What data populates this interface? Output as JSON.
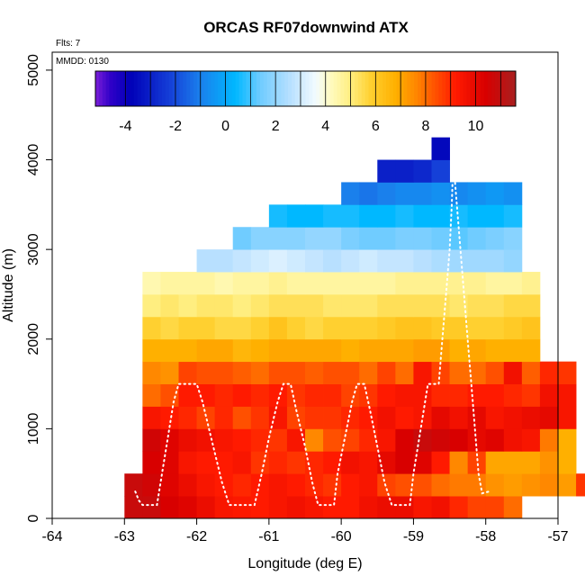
{
  "chart_data": {
    "type": "heatmap",
    "title": "ORCAS RF07downwind ATX",
    "xlabel": "Longitude (deg E)",
    "ylabel": "Altitude (m)",
    "note_flts": "Flts: 7",
    "note_mmdd": "MMDD: 0130",
    "xlim": [
      -64,
      -57
    ],
    "ylim": [
      0,
      5200
    ],
    "x_ticks": [
      -64,
      -63,
      -62,
      -61,
      -60,
      -59,
      -58,
      -57
    ],
    "x_tick_labels": [
      "-64",
      "-63",
      "-62",
      "-61",
      "-60",
      "-59",
      "-58",
      "-57"
    ],
    "y_ticks": [
      0,
      1000,
      2000,
      3000,
      4000,
      5000
    ],
    "y_tick_labels": [
      "0",
      "1000",
      "2000",
      "3000",
      "4000",
      "5000"
    ],
    "colorbar": {
      "range": [
        -5.2,
        11.6
      ],
      "ticks": [
        -4,
        -2,
        0,
        2,
        4,
        6,
        8,
        10
      ],
      "tick_labels": [
        "-4",
        "-2",
        "0",
        "2",
        "4",
        "6",
        "8",
        "10"
      ],
      "color_stops": [
        [
          -5.2,
          "#7b1fd8"
        ],
        [
          -4.6,
          "#3000c8"
        ],
        [
          -3.8,
          "#0000b8"
        ],
        [
          -2.2,
          "#1540d8"
        ],
        [
          -1.0,
          "#1a80ec"
        ],
        [
          0.4,
          "#00b8ff"
        ],
        [
          1.4,
          "#70ccff"
        ],
        [
          2.6,
          "#b8e0ff"
        ],
        [
          3.6,
          "#f2fbff"
        ],
        [
          4.2,
          "#fffbc0"
        ],
        [
          5.0,
          "#ffee80"
        ],
        [
          5.8,
          "#ffd030"
        ],
        [
          6.8,
          "#ffb000"
        ],
        [
          7.6,
          "#ff8800"
        ],
        [
          8.4,
          "#ff5000"
        ],
        [
          9.2,
          "#ff1a00"
        ],
        [
          10.4,
          "#d80000"
        ],
        [
          11.6,
          "#a82020"
        ]
      ]
    },
    "cell_size": {
      "lon": 0.25,
      "alt": 250
    },
    "rows": [
      {
        "alt": 0,
        "lon_start": -63.0,
        "values": [
          10.8,
          10.8,
          10.4,
          10.2,
          9.8,
          9.4,
          9.3,
          9.2,
          9.4,
          9.6,
          9.4,
          9.2,
          9.2,
          9.6,
          9.8,
          9.8,
          9.4,
          9.6,
          9.0,
          8.6,
          8.6,
          8.0
        ]
      },
      {
        "alt": 250,
        "lon_start": -63.0,
        "values": [
          10.8,
          10.6,
          10.2,
          9.8,
          9.4,
          9.2,
          9.0,
          9.2,
          9.4,
          9.2,
          9.0,
          8.8,
          9.2,
          9.4,
          8.6,
          8.4,
          8.4,
          8.0,
          7.8,
          7.8,
          7.4,
          7.2,
          7.4,
          7.6,
          7.2,
          8.8
        ]
      },
      {
        "alt": 500,
        "lon_start": -62.75,
        "values": [
          10.4,
          10.2,
          9.4,
          9.2,
          9.2,
          9.4,
          8.8,
          9.0,
          8.8,
          9.0,
          9.2,
          9.6,
          9.4,
          10.0,
          10.4,
          10.2,
          9.2,
          7.6,
          8.6,
          7.0,
          7.0,
          7.0,
          7.4,
          6.8
        ]
      },
      {
        "alt": 750,
        "lon_start": -62.75,
        "values": [
          10.6,
          10.2,
          9.8,
          9.6,
          9.4,
          9.2,
          9.0,
          8.8,
          9.4,
          7.6,
          8.4,
          8.6,
          9.0,
          9.4,
          10.4,
          10.8,
          10.6,
          10.4,
          10.0,
          10.2,
          9.6,
          9.4,
          7.8,
          6.8
        ]
      },
      {
        "alt": 1000,
        "lon_start": -62.75,
        "values": [
          9.4,
          9.2,
          9.0,
          8.6,
          9.0,
          8.4,
          8.8,
          9.4,
          8.6,
          8.8,
          8.8,
          9.0,
          9.2,
          9.6,
          9.2,
          9.4,
          10.0,
          9.6,
          10.0,
          9.4,
          9.6,
          9.8,
          10.0,
          9.4
        ]
      },
      {
        "alt": 1250,
        "lon_start": -62.75,
        "values": [
          8.0,
          8.4,
          9.2,
          9.2,
          9.0,
          9.2,
          9.0,
          9.2,
          8.8,
          9.0,
          9.0,
          8.6,
          8.8,
          9.2,
          9.4,
          9.4,
          9.0,
          9.0,
          9.2,
          9.2,
          9.0,
          8.8,
          9.6,
          9.4
        ]
      },
      {
        "alt": 1500,
        "lon_start": -62.75,
        "values": [
          7.6,
          7.4,
          8.6,
          8.4,
          8.4,
          8.2,
          8.0,
          8.4,
          8.4,
          8.2,
          8.4,
          8.4,
          8.0,
          8.6,
          8.0,
          9.4,
          8.6,
          8.0,
          8.0,
          8.4,
          9.6,
          8.2,
          9.0,
          8.8
        ]
      },
      {
        "alt": 1750,
        "lon_start": -62.75,
        "values": [
          6.8,
          6.8,
          6.8,
          7.0,
          7.0,
          6.6,
          6.8,
          7.0,
          7.0,
          7.0,
          7.0,
          6.8,
          7.0,
          7.0,
          7.0,
          7.2,
          7.2,
          6.8,
          7.0,
          6.8,
          6.8,
          6.8
        ]
      },
      {
        "alt": 2000,
        "lon_start": -62.75,
        "values": [
          5.8,
          5.6,
          5.8,
          5.8,
          5.6,
          5.6,
          5.8,
          6.2,
          5.8,
          5.6,
          5.8,
          5.8,
          5.8,
          6.0,
          6.2,
          6.2,
          6.0,
          6.0,
          5.8,
          5.8,
          6.0,
          6.2
        ]
      },
      {
        "alt": 2250,
        "lon_start": -62.75,
        "values": [
          5.0,
          5.2,
          5.0,
          5.2,
          5.2,
          5.0,
          5.2,
          5.4,
          5.4,
          5.4,
          5.2,
          5.2,
          5.2,
          5.4,
          5.4,
          5.4,
          5.4,
          5.2,
          5.4,
          5.4,
          5.6,
          5.6
        ]
      },
      {
        "alt": 2500,
        "lon_start": -62.75,
        "values": [
          4.4,
          4.6,
          4.6,
          4.6,
          4.4,
          4.6,
          4.6,
          4.8,
          4.6,
          4.6,
          4.6,
          4.6,
          4.6,
          4.6,
          4.8,
          4.8,
          4.8,
          4.8,
          4.8,
          4.6,
          4.6,
          4.8
        ]
      },
      {
        "alt": 2750,
        "lon_start": -62.0,
        "values": [
          2.6,
          2.6,
          2.8,
          3.0,
          3.2,
          3.0,
          2.8,
          2.6,
          2.8,
          3.0,
          2.8,
          2.8,
          2.6,
          2.4,
          2.2,
          2.2,
          2.2,
          2.0
        ]
      },
      {
        "alt": 3000,
        "lon_start": -61.5,
        "values": [
          1.4,
          1.8,
          1.8,
          1.8,
          2.0,
          2.0,
          1.6,
          1.4,
          1.4,
          1.6,
          1.6,
          1.4,
          1.2,
          1.4,
          1.6,
          1.8
        ]
      },
      {
        "alt": 3250,
        "lon_start": -61.0,
        "values": [
          0.6,
          0.4,
          0.4,
          0.6,
          0.6,
          0.4,
          0.4,
          0.6,
          0.4,
          0.4,
          0.6,
          0.4,
          0.4,
          0.6
        ]
      },
      {
        "alt": 3500,
        "lon_start": -60.0,
        "values": [
          -1.0,
          -1.2,
          -1.0,
          -0.8,
          -0.8,
          -0.6,
          -0.8,
          -0.6,
          -0.4,
          -0.6
        ]
      },
      {
        "alt": 3750,
        "lon_start": -59.5,
        "values": [
          -3.0,
          -3.0,
          -2.8,
          -2.2
        ]
      },
      {
        "alt": 4000,
        "lon_start": -58.75,
        "values": [
          -3.6
        ]
      }
    ],
    "flight_track": [
      [
        -62.85,
        300
      ],
      [
        -62.8,
        200
      ],
      [
        -62.75,
        150
      ],
      [
        -62.55,
        150
      ],
      [
        -62.5,
        400
      ],
      [
        -62.4,
        900
      ],
      [
        -62.32,
        1300
      ],
      [
        -62.25,
        1500
      ],
      [
        -62.0,
        1500
      ],
      [
        -61.92,
        1300
      ],
      [
        -61.8,
        900
      ],
      [
        -61.65,
        400
      ],
      [
        -61.55,
        150
      ],
      [
        -61.4,
        150
      ],
      [
        -61.2,
        150
      ],
      [
        -61.1,
        500
      ],
      [
        -61.0,
        900
      ],
      [
        -60.88,
        1300
      ],
      [
        -60.8,
        1500
      ],
      [
        -60.7,
        1500
      ],
      [
        -60.62,
        1200
      ],
      [
        -60.5,
        800
      ],
      [
        -60.4,
        400
      ],
      [
        -60.32,
        150
      ],
      [
        -60.1,
        150
      ],
      [
        -60.05,
        500
      ],
      [
        -59.95,
        900
      ],
      [
        -59.85,
        1300
      ],
      [
        -59.78,
        1500
      ],
      [
        -59.68,
        1500
      ],
      [
        -59.6,
        1200
      ],
      [
        -59.5,
        800
      ],
      [
        -59.4,
        400
      ],
      [
        -59.3,
        150
      ],
      [
        -59.05,
        150
      ],
      [
        -59.0,
        500
      ],
      [
        -58.9,
        1000
      ],
      [
        -58.8,
        1500
      ],
      [
        -58.65,
        1500
      ],
      [
        -58.6,
        2000
      ],
      [
        -58.55,
        2500
      ],
      [
        -58.5,
        3000
      ],
      [
        -58.47,
        3500
      ],
      [
        -58.45,
        4000
      ],
      [
        -58.4,
        3500
      ],
      [
        -58.35,
        3000
      ],
      [
        -58.3,
        2500
      ],
      [
        -58.25,
        2000
      ],
      [
        -58.2,
        1500
      ],
      [
        -58.15,
        1000
      ],
      [
        -58.1,
        500
      ],
      [
        -58.05,
        280
      ],
      [
        -57.95,
        300
      ]
    ]
  }
}
